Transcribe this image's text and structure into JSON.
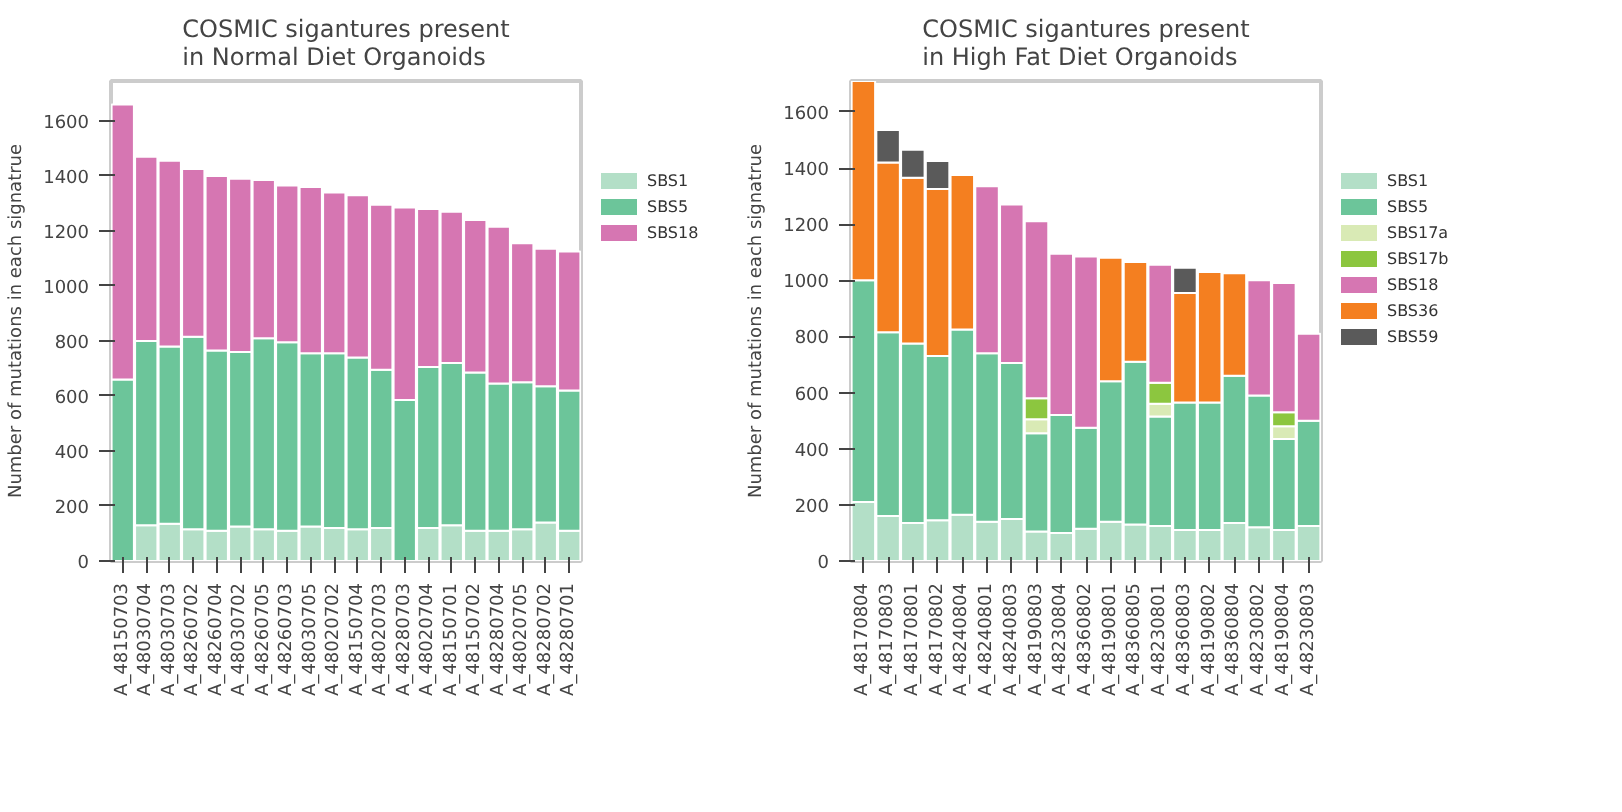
{
  "chart_data": [
    {
      "type": "bar",
      "stacked": true,
      "title": "COSMIC sigantures present\nin Normal Diet Organoids",
      "ylabel": "Number of mutations in each signatrue",
      "legend": "top right",
      "grid": false,
      "categories": [
        "A_48150703",
        "A_48030704",
        "A_48030703",
        "A_48260702",
        "A_48260704",
        "A_48030702",
        "A_48260705",
        "A_48260703",
        "A_48030705",
        "A_48020702",
        "A_48150704",
        "A_48020703",
        "A_48280703",
        "A_48020704",
        "A_48150701",
        "A_48150702",
        "A_48280704",
        "A_48020705",
        "A_48280702",
        "A_48280701"
      ],
      "ylim": [
        0,
        1745
      ],
      "yticks": [
        0,
        200,
        400,
        600,
        800,
        1000,
        1200,
        1400,
        1600
      ],
      "series": [
        {
          "name": "SBS1",
          "color": "#b3dfc7",
          "values": [
            null,
            130,
            135,
            115,
            110,
            125,
            115,
            110,
            125,
            120,
            115,
            120,
            null,
            120,
            130,
            110,
            110,
            115,
            140,
            110
          ]
        },
        {
          "name": "SBS5",
          "color": "#6cc59a",
          "values": [
            660,
            670,
            645,
            700,
            655,
            635,
            695,
            685,
            630,
            635,
            625,
            575,
            585,
            585,
            590,
            575,
            535,
            535,
            495,
            510
          ]
        },
        {
          "name": "SBS18",
          "color": "#d676b2",
          "values": [
            1000,
            670,
            675,
            610,
            635,
            630,
            575,
            570,
            605,
            585,
            590,
            600,
            700,
            575,
            550,
            555,
            570,
            505,
            500,
            505
          ]
        }
      ]
    },
    {
      "type": "bar",
      "stacked": true,
      "title": "COSMIC sigantures present\nin High Fat Diet Organoids",
      "ylabel": "Number of mutations in each signatrue",
      "legend": "top right",
      "grid": false,
      "categories": [
        "A_48170804",
        "A_48170803",
        "A_48170801",
        "A_48170802",
        "A_48240804",
        "A_48240801",
        "A_48240803",
        "A_48190803",
        "A_48230804",
        "A_48360802",
        "A_48190801",
        "A_48360805",
        "A_48230801",
        "A_48360803",
        "A_48190802",
        "A_48360804",
        "A_48230802",
        "A_48190804",
        "A_48230803"
      ],
      "ylim": [
        0,
        1710
      ],
      "yticks": [
        0,
        200,
        400,
        600,
        800,
        1000,
        1200,
        1400,
        1600
      ],
      "series": [
        {
          "name": "SBS1",
          "color": "#b3dfc7",
          "values": [
            210,
            160,
            135,
            145,
            165,
            140,
            150,
            105,
            100,
            115,
            140,
            130,
            125,
            110,
            110,
            135,
            120,
            110,
            125
          ]
        },
        {
          "name": "SBS5",
          "color": "#6cc59a",
          "values": [
            790,
            655,
            640,
            585,
            660,
            600,
            555,
            350,
            420,
            360,
            500,
            580,
            390,
            455,
            455,
            525,
            470,
            325,
            375
          ]
        },
        {
          "name": "SBS17a",
          "color": "#d9eab5",
          "values": [
            null,
            null,
            null,
            null,
            null,
            null,
            null,
            50,
            null,
            null,
            null,
            null,
            45,
            null,
            null,
            null,
            null,
            45,
            null
          ]
        },
        {
          "name": "SBS17b",
          "color": "#8cc63f",
          "values": [
            null,
            null,
            null,
            null,
            null,
            null,
            null,
            75,
            null,
            null,
            null,
            null,
            75,
            null,
            null,
            null,
            null,
            50,
            null
          ]
        },
        {
          "name": "SBS18",
          "color": "#d676b2",
          "values": [
            null,
            null,
            null,
            null,
            null,
            595,
            565,
            630,
            575,
            610,
            null,
            null,
            420,
            null,
            null,
            null,
            410,
            460,
            310
          ]
        },
        {
          "name": "SBS36",
          "color": "#f47f20",
          "values": [
            710,
            605,
            590,
            595,
            550,
            null,
            null,
            null,
            null,
            null,
            440,
            355,
            null,
            390,
            465,
            365,
            null,
            null,
            null
          ]
        },
        {
          "name": "SBS59",
          "color": "#5a5a5a",
          "values": [
            null,
            115,
            100,
            100,
            null,
            null,
            null,
            null,
            null,
            null,
            null,
            null,
            null,
            90,
            null,
            null,
            null,
            null,
            null
          ]
        }
      ]
    }
  ]
}
